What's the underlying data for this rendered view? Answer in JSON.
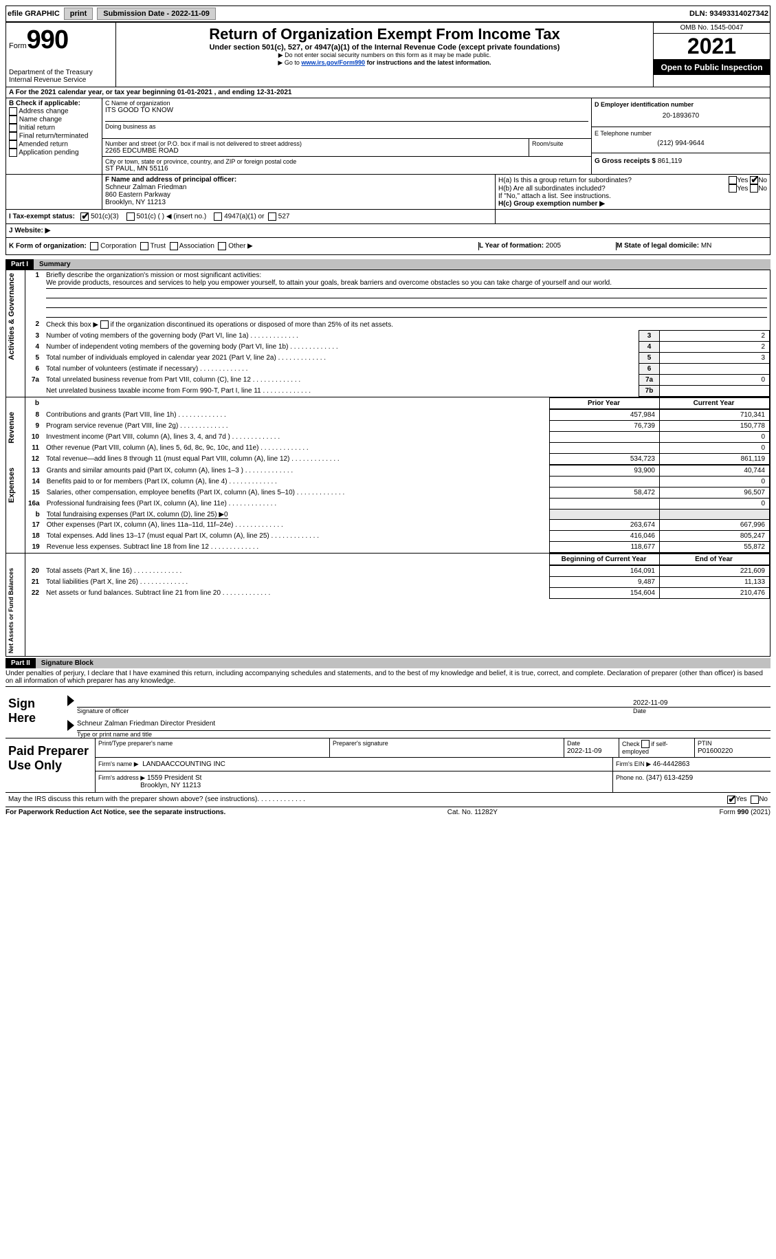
{
  "topbar": {
    "efile": "efile GRAPHIC",
    "print_btn": "print",
    "submission_label": "Submission Date - 2022-11-09",
    "dln": "DLN: 93493314027342"
  },
  "header": {
    "form_word": "Form",
    "form_num": "990",
    "dept": "Department of the Treasury",
    "irs": "Internal Revenue Service",
    "title": "Return of Organization Exempt From Income Tax",
    "sub1": "Under section 501(c), 527, or 4947(a)(1) of the Internal Revenue Code (except private foundations)",
    "sub2": "Do not enter social security numbers on this form as it may be made public.",
    "sub3_pre": "Go to ",
    "sub3_link": "www.irs.gov/Form990",
    "sub3_post": " for instructions and the latest information.",
    "omb": "OMB No. 1545-0047",
    "year": "2021",
    "open": "Open to Public Inspection"
  },
  "lineA": "A For the 2021 calendar year, or tax year beginning 01-01-2021   , and ending 12-31-2021",
  "boxB": {
    "label": "B Check if applicable:",
    "opts": [
      "Address change",
      "Name change",
      "Initial return",
      "Final return/terminated",
      "Amended return",
      "Application pending"
    ]
  },
  "boxC": {
    "label_name": "C Name of organization",
    "name": "ITS GOOD TO KNOW",
    "dba_label": "Doing business as",
    "street_label": "Number and street (or P.O. box if mail is not delivered to street address)",
    "room_label": "Room/suite",
    "street": "2265 EDCUMBE ROAD",
    "city_label": "City or town, state or province, country, and ZIP or foreign postal code",
    "city": "ST PAUL, MN  55116"
  },
  "boxD": {
    "label": "D Employer identification number",
    "val": "20-1893670"
  },
  "boxE": {
    "label": "E Telephone number",
    "val": "(212) 994-9644"
  },
  "boxG": {
    "label": "G Gross receipts $",
    "val": "861,119"
  },
  "boxF": {
    "label": "F  Name and address of principal officer:",
    "name": "Schneur Zalman Friedman",
    "addr1": "860 Eastern Parkway",
    "addr2": "Brooklyn, NY  11213"
  },
  "boxH": {
    "ha": "H(a)  Is this a group return for subordinates?",
    "hb": "H(b)  Are all subordinates included?",
    "note": "If \"No,\" attach a list. See instructions.",
    "hc": "H(c)  Group exemption number ▶",
    "yes": "Yes",
    "no": "No"
  },
  "boxI": {
    "label": "I  Tax-exempt status:",
    "a": "501(c)(3)",
    "b": "501(c) (  ) ◀ (insert no.)",
    "c": "4947(a)(1) or",
    "d": "527"
  },
  "boxJ": "J  Website: ▶",
  "boxK": {
    "label": "K Form of organization:",
    "opts": [
      "Corporation",
      "Trust",
      "Association",
      "Other ▶"
    ]
  },
  "boxL": {
    "label": "L Year of formation:",
    "val": "2005"
  },
  "boxM": {
    "label": "M State of legal domicile:",
    "val": "MN"
  },
  "part1": {
    "label": "Part I",
    "title": "Summary"
  },
  "activities_label": "Activities & Governance",
  "line1": {
    "text": "Briefly describe the organization's mission or most significant activities:",
    "body": "We provide products, resources and services to help you empower yourself, to attain your goals, break barriers and overcome obstacles so you can take charge of yourself and our world."
  },
  "line2": "Check this box ▶        if the organization discontinued its operations or disposed of more than 25% of its net assets.",
  "governance_rows": [
    {
      "n": "3",
      "d": "Number of voting members of the governing body (Part VI, line 1a)",
      "box": "3",
      "v": "2"
    },
    {
      "n": "4",
      "d": "Number of independent voting members of the governing body (Part VI, line 1b)",
      "box": "4",
      "v": "2"
    },
    {
      "n": "5",
      "d": "Total number of individuals employed in calendar year 2021 (Part V, line 2a)",
      "box": "5",
      "v": "3"
    },
    {
      "n": "6",
      "d": "Total number of volunteers (estimate if necessary)",
      "box": "6",
      "v": ""
    },
    {
      "n": "7a",
      "d": "Total unrelated business revenue from Part VIII, column (C), line 12",
      "box": "7a",
      "v": "0"
    },
    {
      "n": "",
      "d": "Net unrelated business taxable income from Form 990-T, Part I, line 11",
      "box": "7b",
      "v": ""
    }
  ],
  "col_headers": {
    "prior": "Prior Year",
    "current": "Current Year",
    "begin": "Beginning of Current Year",
    "end": "End of Year"
  },
  "revenue_label": "Revenue",
  "revenue_rows": [
    {
      "n": "8",
      "d": "Contributions and grants (Part VIII, line 1h)",
      "p": "457,984",
      "c": "710,341"
    },
    {
      "n": "9",
      "d": "Program service revenue (Part VIII, line 2g)",
      "p": "76,739",
      "c": "150,778"
    },
    {
      "n": "10",
      "d": "Investment income (Part VIII, column (A), lines 3, 4, and 7d )",
      "p": "",
      "c": "0"
    },
    {
      "n": "11",
      "d": "Other revenue (Part VIII, column (A), lines 5, 6d, 8c, 9c, 10c, and 11e)",
      "p": "",
      "c": "0"
    },
    {
      "n": "12",
      "d": "Total revenue—add lines 8 through 11 (must equal Part VIII, column (A), line 12)",
      "p": "534,723",
      "c": "861,119"
    }
  ],
  "expenses_label": "Expenses",
  "expenses_rows": [
    {
      "n": "13",
      "d": "Grants and similar amounts paid (Part IX, column (A), lines 1–3 )",
      "p": "93,900",
      "c": "40,744"
    },
    {
      "n": "14",
      "d": "Benefits paid to or for members (Part IX, column (A), line 4)",
      "p": "",
      "c": "0"
    },
    {
      "n": "15",
      "d": "Salaries, other compensation, employee benefits (Part IX, column (A), lines 5–10)",
      "p": "58,472",
      "c": "96,507"
    },
    {
      "n": "16a",
      "d": "Professional fundraising fees (Part IX, column (A), line 11e)",
      "p": "",
      "c": "0"
    },
    {
      "n": "b",
      "d": "Total fundraising expenses (Part IX, column (D), line 25) ▶0",
      "p": "GRAY",
      "c": "GRAY"
    },
    {
      "n": "17",
      "d": "Other expenses (Part IX, column (A), lines 11a–11d, 11f–24e)",
      "p": "263,674",
      "c": "667,996"
    },
    {
      "n": "18",
      "d": "Total expenses. Add lines 13–17 (must equal Part IX, column (A), line 25)",
      "p": "416,046",
      "c": "805,247"
    },
    {
      "n": "19",
      "d": "Revenue less expenses. Subtract line 18 from line 12",
      "p": "118,677",
      "c": "55,872"
    }
  ],
  "netassets_label": "Net Assets or Fund Balances",
  "net_rows": [
    {
      "n": "20",
      "d": "Total assets (Part X, line 16)",
      "p": "164,091",
      "c": "221,609"
    },
    {
      "n": "21",
      "d": "Total liabilities (Part X, line 26)",
      "p": "9,487",
      "c": "11,133"
    },
    {
      "n": "22",
      "d": "Net assets or fund balances. Subtract line 21 from line 20",
      "p": "154,604",
      "c": "210,476"
    }
  ],
  "part2": {
    "label": "Part II",
    "title": "Signature Block"
  },
  "penalties": "Under penalties of perjury, I declare that I have examined this return, including accompanying schedules and statements, and to the best of my knowledge and belief, it is true, correct, and complete. Declaration of preparer (other than officer) is based on all information of which preparer has any knowledge.",
  "sign": {
    "here": "Sign Here",
    "sig_label": "Signature of officer",
    "date_label": "Date",
    "date": "2022-11-09",
    "name": "Schneur Zalman Friedman  Director President",
    "name_label": "Type or print name and title"
  },
  "preparer": {
    "here": "Paid Preparer Use Only",
    "h1": "Print/Type preparer's name",
    "h2": "Preparer's signature",
    "h3_label": "Date",
    "h3": "2022-11-09",
    "h4_label": "Check         if self-employed",
    "h5_label": "PTIN",
    "h5": "P01600220",
    "firm_label": "Firm's name   ▶",
    "firm": "LANDAACCOUNTING INC",
    "ein_label": "Firm's EIN ▶",
    "ein": "46-4442863",
    "addr_label": "Firm's address ▶",
    "addr1": "1559 President St",
    "addr2": "Brooklyn, NY  11213",
    "phone_label": "Phone no.",
    "phone": "(347) 613-4259"
  },
  "discuss": "May the IRS discuss this return with the preparer shown above? (see instructions)",
  "footer": {
    "left": "For Paperwork Reduction Act Notice, see the separate instructions.",
    "mid": "Cat. No. 11282Y",
    "right": "Form 990 (2021)"
  }
}
